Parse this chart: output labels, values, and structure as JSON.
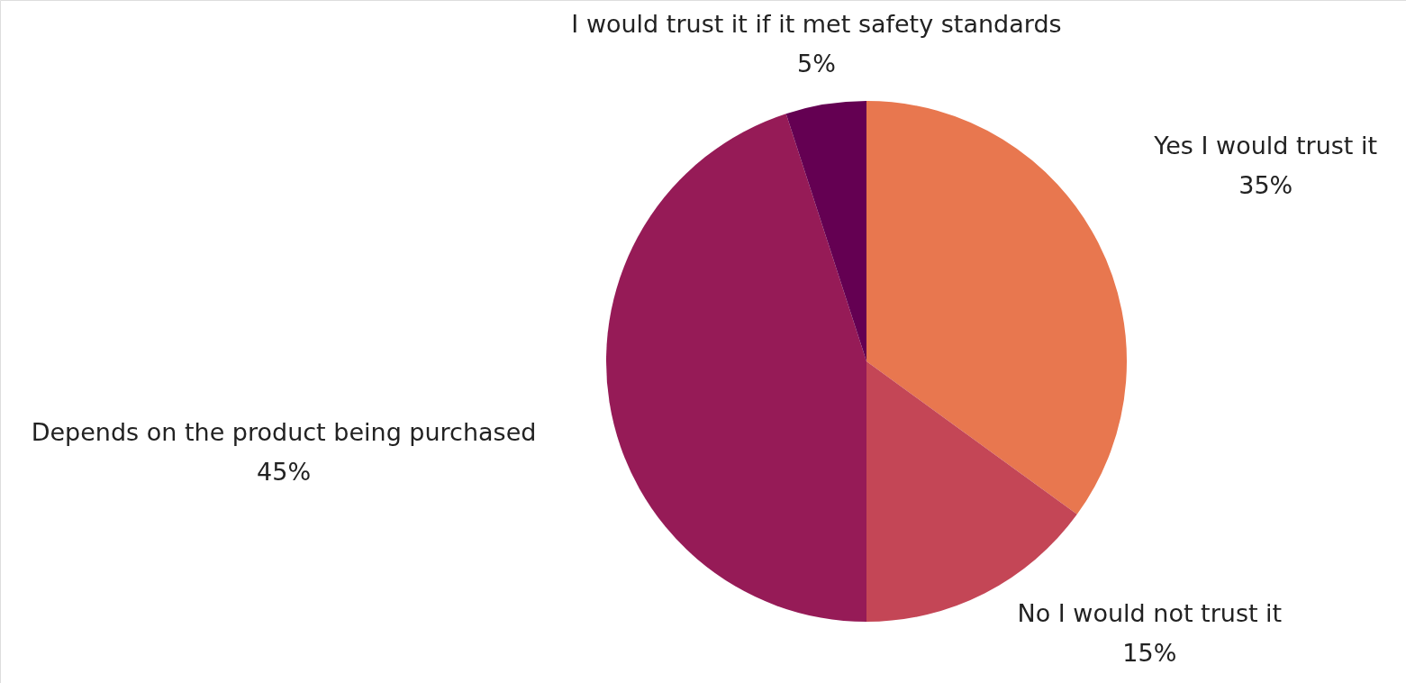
{
  "chart_data": {
    "type": "pie",
    "categories": [
      "Yes I would trust it",
      "No I would not trust it",
      "Depends on the product being purchased",
      "I would trust it if it met safety standards"
    ],
    "values": [
      35,
      15,
      45,
      5
    ],
    "value_labels": [
      "35%",
      "15%",
      "45%",
      "5%"
    ],
    "colors": [
      "#e8774f",
      "#c44656",
      "#961b57",
      "#640052"
    ]
  }
}
